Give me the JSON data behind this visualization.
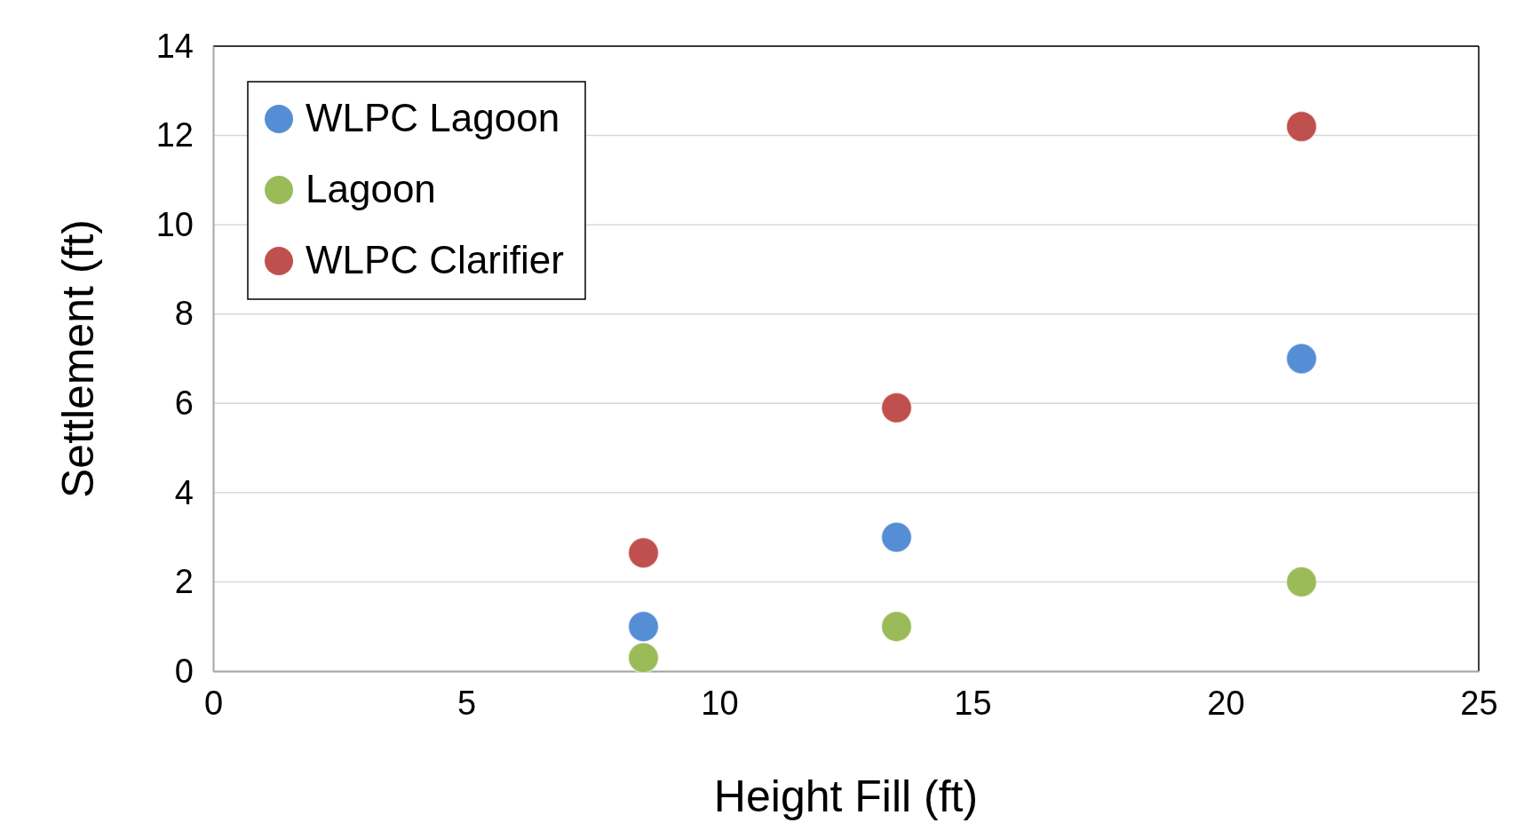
{
  "chart_data": {
    "type": "scatter",
    "xlabel": "Height Fill (ft)",
    "ylabel": "Settlement (ft)",
    "xlim": [
      0,
      25
    ],
    "xticks": [
      0,
      5,
      10,
      15,
      20,
      25
    ],
    "ylim": [
      0,
      14
    ],
    "yticks": [
      0,
      2,
      4,
      6,
      8,
      10,
      12,
      14
    ],
    "grid": "y",
    "legend": "top left",
    "marker": "circle",
    "series": [
      {
        "name": "WLPC Lagoon",
        "color": "#558ed5",
        "x": [
          8.5,
          13.5,
          21.5
        ],
        "values": [
          1,
          3,
          7
        ]
      },
      {
        "name": "Lagoon",
        "color": "#9bbb59",
        "x": [
          8.5,
          13.5,
          21.5
        ],
        "values": [
          0.3,
          1,
          2
        ]
      },
      {
        "name": "WLPC Clarifier",
        "color": "#c0504d",
        "x": [
          8.5,
          13.5,
          21.5
        ],
        "values": [
          2.65,
          5.9,
          12.2
        ]
      }
    ]
  }
}
